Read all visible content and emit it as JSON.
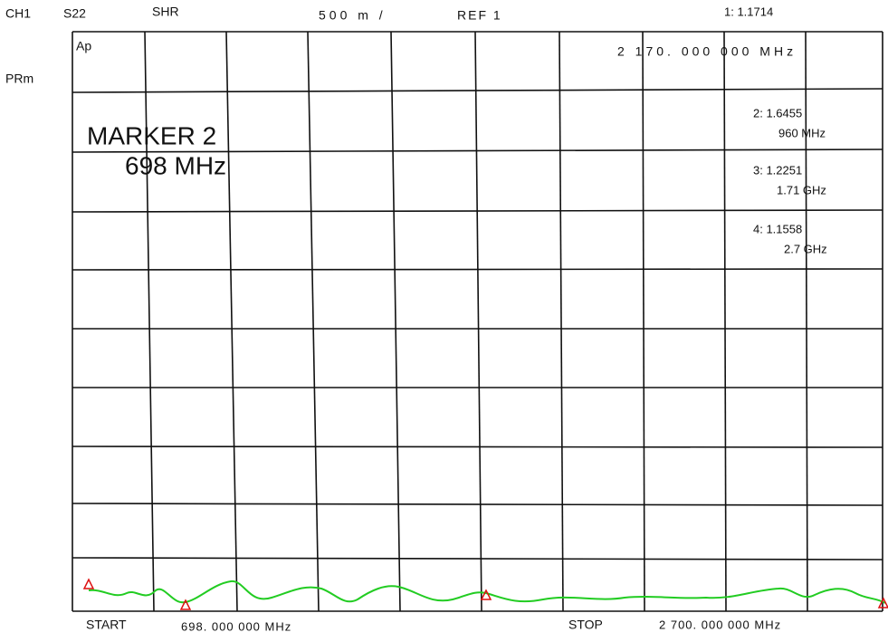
{
  "header": {
    "channel": "CH1",
    "parameter": "S22",
    "format": "SHR",
    "scale": "500 m /",
    "reference": "REF 1",
    "marker1": "1: 1.1714"
  },
  "side": {
    "ap": "Ap",
    "prm": "PRm"
  },
  "active_frequency": "2 170. 000 000 MHz",
  "annotation": {
    "line1": "MARKER 2",
    "line2": "698 MHz"
  },
  "markers": [
    {
      "value": "2: 1.6455",
      "frequency": "960 MHz"
    },
    {
      "value": "3: 1.2251",
      "frequency": "1.71 GHz"
    },
    {
      "value": "4: 1.1558",
      "frequency": "2.7 GHz"
    }
  ],
  "footer": {
    "start": "START",
    "start_frequency": "698. 000 000 MHz",
    "stop": "STOP",
    "stop_frequency": "2 700. 000 000 MHz"
  }
}
